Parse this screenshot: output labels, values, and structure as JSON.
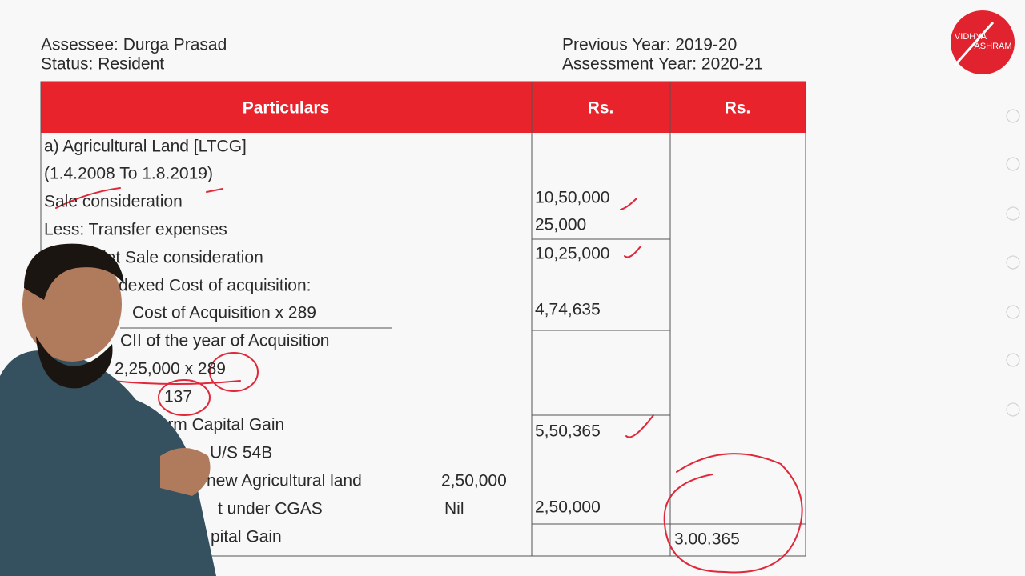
{
  "header": {
    "assessee": "Assessee: Durga Prasad",
    "status": "Status: Resident",
    "previous_year": "Previous Year: 2019-20",
    "assessment_year": "Assessment Year: 2020-21"
  },
  "logo": {
    "line1": "VIDHYA",
    "line2": "ASHRAM"
  },
  "table": {
    "columns": [
      "Particulars",
      "Rs.",
      "Rs."
    ],
    "rows": [
      {
        "particulars": "a) Agricultural Land [LTCG]"
      },
      {
        "particulars": "(1.4.2008 To 1.8.2019)"
      },
      {
        "particulars": "Sale consideration",
        "amount": "10,50,000"
      },
      {
        "particulars": "Less: Transfer expenses",
        "amount": "25,000"
      },
      {
        "particulars": "let Sale consideration",
        "amount": "10,25,000"
      },
      {
        "particulars": "dexed Cost of acquisition:"
      },
      {
        "particulars": "Cost of Acquisition x 289",
        "amount": "4,74,635"
      },
      {
        "particulars": "CII of the year of Acquisition"
      },
      {
        "particulars": "2,25,000 x 289"
      },
      {
        "particulars": "137"
      },
      {
        "particulars": "g Term Capital Gain",
        "amount": "5,50,365"
      },
      {
        "particulars": "U/S 54B"
      },
      {
        "particulars": "new Agricultural land",
        "sub_amount": "2,50,000"
      },
      {
        "particulars": "t under CGAS",
        "sub_amount": "Nil",
        "amount": "2,50,000"
      },
      {
        "particulars": "pital Gain",
        "total": "3.00.365"
      }
    ]
  }
}
